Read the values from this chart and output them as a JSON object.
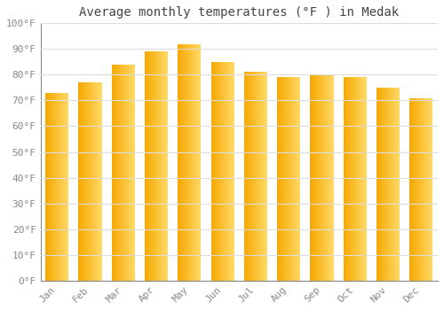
{
  "months": [
    "Jan",
    "Feb",
    "Mar",
    "Apr",
    "May",
    "Jun",
    "Jul",
    "Aug",
    "Sep",
    "Oct",
    "Nov",
    "Dec"
  ],
  "values": [
    73,
    77,
    84,
    89,
    92,
    85,
    81,
    79,
    80,
    79,
    75,
    71
  ],
  "bar_color_left": "#F5A800",
  "bar_color_right": "#FFD966",
  "title": "Average monthly temperatures (°F ) in Medak",
  "ylim": [
    0,
    100
  ],
  "ytick_step": 10,
  "background_color": "#FFFFFF",
  "grid_color": "#DDDDDD",
  "title_fontsize": 10,
  "tick_fontsize": 8,
  "tick_font": "monospace",
  "tick_color": "#888888",
  "bar_width": 0.7,
  "n_grad": 60
}
